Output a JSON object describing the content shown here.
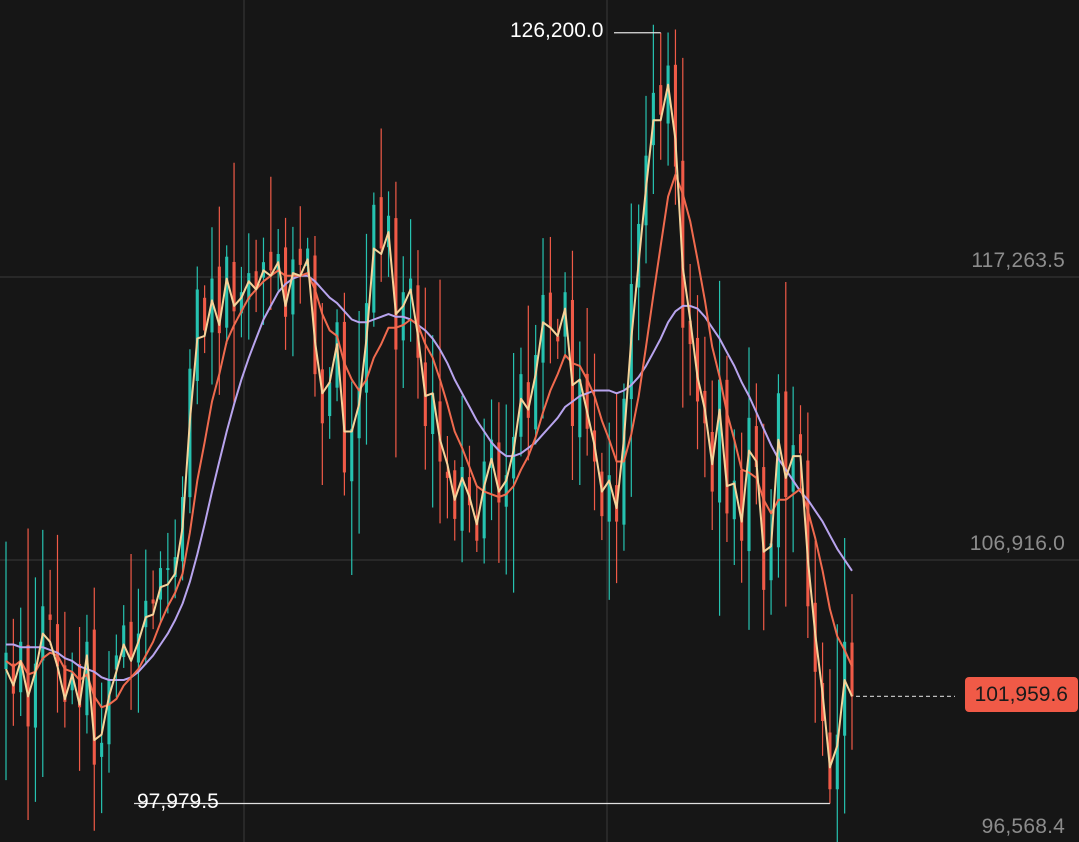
{
  "chart_data": {
    "type": "candlestick",
    "price_axis": {
      "labels": [
        "117,263.5",
        "106,916.0",
        "96,568.4"
      ],
      "ylim": [
        96568.4,
        127400
      ]
    },
    "high_marker": "126,200.0",
    "low_marker": "97,979.5",
    "last_price": "101,959.6",
    "colors": {
      "up": "#26c2b0",
      "down": "#f05a47",
      "ma_fast": "#f6d39a",
      "ma_mid": "#f06a4e",
      "ma_slow": "#b8a4ee",
      "last_tag": "#f05a47"
    },
    "series": [
      {
        "name": "close",
        "values": [
          103500,
          102000,
          103900,
          100800,
          103100,
          105200,
          104700,
          103000,
          101700,
          102800,
          101500,
          103900,
          99400,
          100200,
          102500,
          103400,
          104500,
          103300,
          104200,
          105400,
          105300,
          106600,
          106600,
          107000,
          109200,
          113900,
          116800,
          115300,
          117200,
          115200,
          118000,
          116000,
          116700,
          117400,
          116800,
          117800,
          117500,
          118100,
          115800,
          117900,
          117700,
          118300,
          113700,
          111900,
          113400,
          115600,
          110100,
          111700,
          113200,
          116300,
          119900,
          118300,
          119500,
          114600,
          116700,
          117200,
          114300,
          111800,
          113000,
          110500,
          109900,
          108400,
          110300,
          108900,
          107600,
          110500,
          111300,
          109000,
          110000,
          111400,
          113700,
          112100,
          114400,
          116600,
          115400,
          114900,
          116700,
          111800,
          113500,
          111700,
          110500,
          108500,
          110000,
          108300,
          112800,
          117000,
          119200,
          121700,
          124000,
          123200,
          125000,
          121300,
          115400,
          114800,
          112700,
          111900,
          109400,
          113500,
          108600,
          109800,
          107600,
          112100,
          110300,
          105800,
          107500,
          113000,
          109200,
          111100,
          110800,
          105200,
          102800,
          101000,
          98500,
          100500,
          103900,
          101900
        ]
      },
      {
        "name": "ma_fast",
        "values": [
          102900,
          102300,
          103200,
          101900,
          102800,
          104200,
          103900,
          103000,
          101800,
          102700,
          101600,
          103400,
          100300,
          100500,
          101900,
          102800,
          103800,
          103200,
          103900,
          104800,
          104900,
          105900,
          106000,
          106400,
          108100,
          112000,
          115000,
          115100,
          116400,
          115500,
          117200,
          116200,
          116500,
          117100,
          116800,
          117500,
          117300,
          117800,
          116200,
          117400,
          117300,
          117900,
          114900,
          113000,
          113400,
          114800,
          111600,
          111600,
          112600,
          115000,
          118300,
          118100,
          118900,
          115900,
          116200,
          116800,
          115100,
          112900,
          113000,
          111300,
          110400,
          109100,
          109900,
          109200,
          108200,
          109600,
          110600,
          109400,
          109800,
          110900,
          112800,
          112400,
          113700,
          115600,
          115400,
          115100,
          116100,
          113300,
          113500,
          112300,
          111100,
          109400,
          109800,
          108800,
          111300,
          115000,
          117800,
          120500,
          123000,
          123000,
          124300,
          122300,
          117600,
          115700,
          113600,
          112400,
          110400,
          112400,
          109600,
          109700,
          108300,
          110900,
          110500,
          107200,
          107400,
          111300,
          109900,
          110700,
          110700,
          106900,
          104200,
          102000,
          99300,
          100100,
          102500,
          101900
        ]
      },
      {
        "name": "ma_mid",
        "values": [
          103200,
          103000,
          103200,
          102700,
          102800,
          103300,
          103500,
          103400,
          102900,
          102800,
          102500,
          102700,
          101900,
          101500,
          101600,
          101800,
          102300,
          102600,
          102900,
          103400,
          103900,
          104600,
          105200,
          105700,
          106400,
          107900,
          109800,
          111200,
          112700,
          113700,
          114900,
          115500,
          116000,
          116500,
          116800,
          117100,
          117300,
          117500,
          117300,
          117300,
          117300,
          117400,
          116800,
          115900,
          115300,
          115100,
          114100,
          113500,
          113100,
          113500,
          114300,
          114800,
          115400,
          115400,
          115500,
          115700,
          115500,
          114800,
          114300,
          113500,
          112600,
          111600,
          111000,
          110300,
          109600,
          109400,
          109300,
          109200,
          109300,
          109600,
          110200,
          110700,
          111400,
          112300,
          113100,
          113700,
          114400,
          114100,
          114000,
          113500,
          112900,
          112000,
          111300,
          110500,
          110500,
          111500,
          112900,
          114700,
          116600,
          118400,
          120200,
          121000,
          120300,
          119300,
          117900,
          116400,
          114700,
          113600,
          112300,
          111300,
          110200,
          110100,
          109900,
          109100,
          108600,
          109100,
          109100,
          109300,
          109500,
          108700,
          107700,
          106500,
          105100,
          104100,
          103600,
          103000
        ]
      },
      {
        "name": "ma_slow",
        "values": [
          103800,
          103800,
          103700,
          103700,
          103700,
          103700,
          103600,
          103500,
          103300,
          103200,
          103000,
          102900,
          102800,
          102600,
          102500,
          102500,
          102500,
          102600,
          102800,
          103100,
          103400,
          103800,
          104200,
          104700,
          105300,
          106100,
          107100,
          108200,
          109400,
          110500,
          111600,
          112600,
          113500,
          114300,
          115000,
          115700,
          116200,
          116700,
          117000,
          117200,
          117300,
          117300,
          117100,
          116800,
          116500,
          116300,
          116000,
          115700,
          115600,
          115600,
          115700,
          115800,
          115900,
          115800,
          115800,
          115700,
          115500,
          115300,
          115000,
          114600,
          114100,
          113500,
          113000,
          112500,
          112000,
          111600,
          111200,
          110900,
          110700,
          110700,
          110800,
          111000,
          111200,
          111500,
          111800,
          112100,
          112500,
          112700,
          112900,
          113000,
          113100,
          113100,
          113100,
          113000,
          113100,
          113300,
          113600,
          114000,
          114500,
          115000,
          115600,
          116000,
          116200,
          116200,
          116100,
          115800,
          115400,
          115000,
          114500,
          114000,
          113400,
          112900,
          112300,
          111700,
          111100,
          110600,
          110200,
          109800,
          109400,
          109100,
          108700,
          108300,
          107800,
          107300,
          106900,
          106500
        ]
      }
    ]
  }
}
